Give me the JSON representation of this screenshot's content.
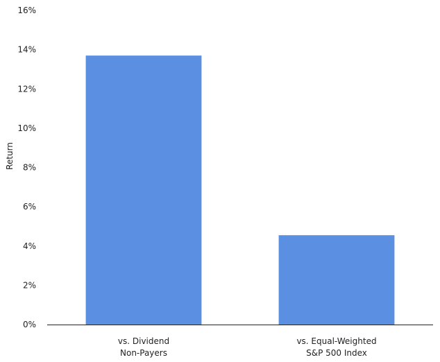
{
  "chart_data": {
    "type": "bar",
    "title": "",
    "xlabel": "",
    "ylabel": "Return",
    "categories": [
      [
        "vs. Dividend",
        "Non-Payers"
      ],
      [
        "vs. Equal-Weighted",
        "S&P 500 Index"
      ]
    ],
    "values": [
      0.137,
      0.0455
    ],
    "ylim": [
      0,
      0.16
    ],
    "yticks": [
      0,
      0.02,
      0.04,
      0.06,
      0.08,
      0.1,
      0.12,
      0.14,
      0.16
    ],
    "ytick_labels": [
      "0%",
      "2%",
      "4%",
      "6%",
      "8%",
      "10%",
      "12%",
      "14%",
      "16%"
    ],
    "grid": false,
    "bar_color": "#5b8fe2",
    "axis_color": "#222222"
  }
}
